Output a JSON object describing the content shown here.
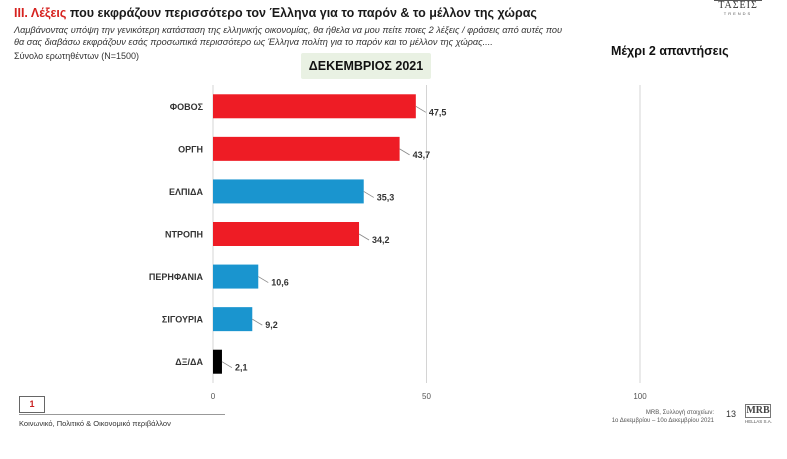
{
  "header": {
    "section": "ΙΙΙ.",
    "title_accent": "Λέξεις",
    "title_rest": "που εκφράζουν περισσότερο τον Έλληνα για το παρόν & το μέλλον της χώρας",
    "subtitle": "Λαμβάνοντας υπόψη την γενικότερη κατάσταση της ελληνικής οικονομίας, θα ήθελα να μου πείτε ποιες 2  λέξεις / φράσεις από αυτές που θα σας διαβάσω εκφράζουν εσάς προσωπικά περισσότερο ως Έλληνα πολίτη για το παρόν και το μέλλον της χώρας....",
    "base": "Σύνολο ερωτηθέντων (Ν=1500)",
    "logo_top": "ΤΑΣΕΙΣ",
    "logo_top_sub": "TRENDS"
  },
  "period_label": "ΔΕΚΕΜΒΡΙΟΣ 2021",
  "right_heading": "Μέχρι 2 απαντήσεις",
  "chart_data": {
    "type": "bar",
    "orientation": "horizontal",
    "categories": [
      "ΦΟΒΟΣ",
      "ΟΡΓΗ",
      "ΕΛΠΙΔΑ",
      "ΝΤΡΟΠΗ",
      "ΠΕΡΗΦΑΝΙΑ",
      "ΣΙΓΟΥΡΙΑ",
      "ΔΞ/ΔΑ"
    ],
    "values": [
      47.5,
      43.7,
      35.3,
      34.2,
      10.6,
      9.2,
      2.1
    ],
    "value_labels": [
      "47,5",
      "43,7",
      "35,3",
      "34,2",
      "10,6",
      "9,2",
      "2,1"
    ],
    "colors": [
      "#ee1c25",
      "#ee1c25",
      "#1a95cf",
      "#ee1c25",
      "#1a95cf",
      "#1a95cf",
      "#000000"
    ],
    "xlim": [
      0,
      100
    ],
    "xticks": [
      0,
      50,
      100
    ],
    "xtick_labels": [
      "0",
      "50",
      "100"
    ],
    "grid": true,
    "title": "ΔΕΚΕΜΒΡΙΟΣ 2021"
  },
  "footer": {
    "page_box": "1",
    "left_text": "Κοινωνικό, Πολιτικό & Οικονομικό περιβάλλον",
    "source_line1": "MRB, Συλλογή στοιχείων:",
    "source_line2": "1ο Δεκεμβρίου –  10ο Δεκεμβρίου 2021",
    "slide_number": "13",
    "logo_bottom": "MRB",
    "logo_bottom_sub": "HELLAS S.A."
  }
}
